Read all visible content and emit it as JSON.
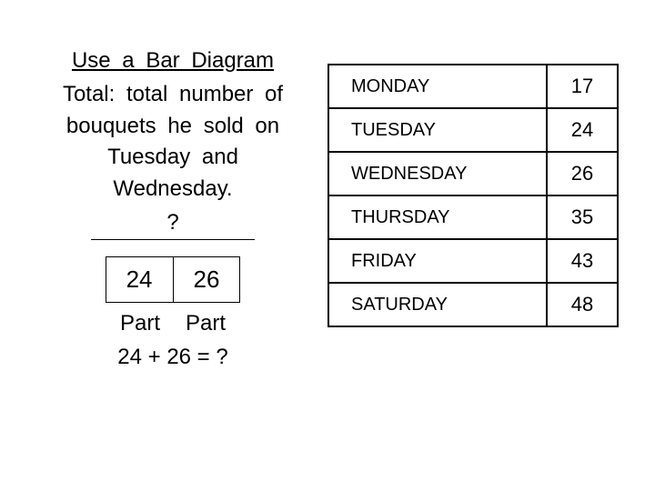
{
  "left": {
    "title_underlined": "Use a Bar Diagram",
    "line1": "Total: total number of",
    "line2": "bouquets he sold on",
    "line3": "Tuesday and",
    "line4": "Wednesday.",
    "qmark": "?",
    "bar_left": "24",
    "bar_right": "26",
    "part_left": "Part",
    "part_right": "Part",
    "equation": "24 + 26 = ?"
  },
  "table": {
    "rows": [
      {
        "day": "MONDAY",
        "value": "17"
      },
      {
        "day": "TUESDAY",
        "value": "24"
      },
      {
        "day": "WEDNESDAY",
        "value": "26"
      },
      {
        "day": "THURSDAY",
        "value": "35"
      },
      {
        "day": "FRIDAY",
        "value": "43"
      },
      {
        "day": "SATURDAY",
        "value": "48"
      }
    ]
  },
  "colors": {
    "background": "#ffffff",
    "text": "#000000",
    "border": "#000000"
  }
}
